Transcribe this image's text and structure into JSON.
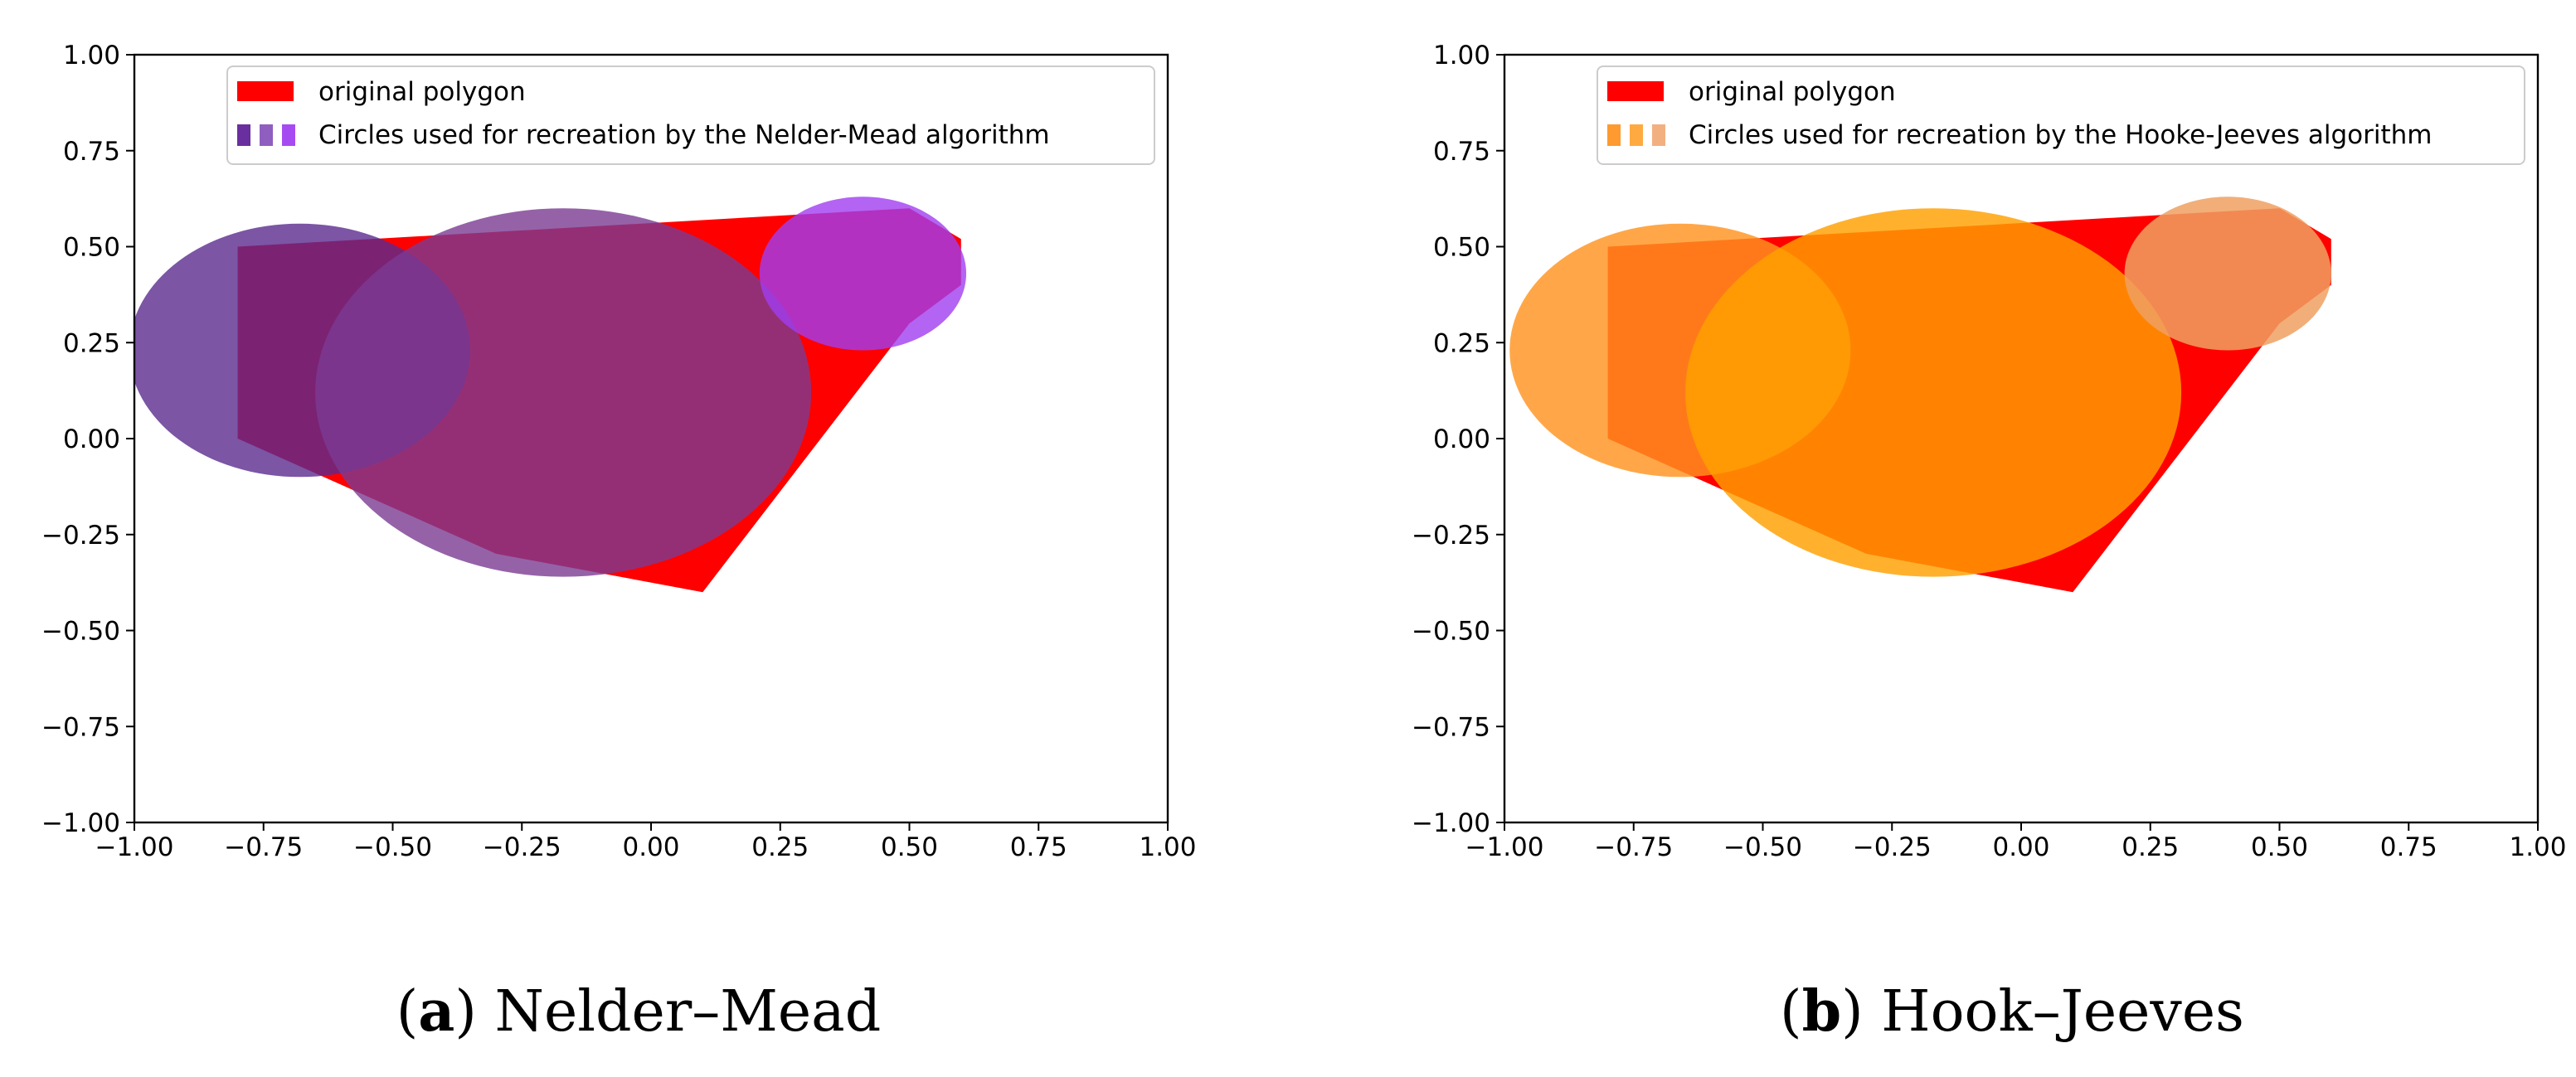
{
  "chart_data": [
    {
      "type": "shapes",
      "caption": {
        "label": "a",
        "title": "Nelder–Mead"
      },
      "xlim": [
        -1.0,
        1.0
      ],
      "ylim": [
        -1.0,
        1.0
      ],
      "xticks": [
        -1.0,
        -0.75,
        -0.5,
        -0.25,
        0.0,
        0.25,
        0.5,
        0.75,
        1.0
      ],
      "yticks": [
        -1.0,
        -0.75,
        -0.5,
        -0.25,
        0.0,
        0.25,
        0.5,
        0.75,
        1.0
      ],
      "xtick_labels": [
        "−1.00",
        "−0.75",
        "−0.50",
        "−0.25",
        "0.00",
        "0.25",
        "0.50",
        "0.75",
        "1.00"
      ],
      "ytick_labels": [
        "−1.00",
        "−0.75",
        "−0.50",
        "−0.25",
        "0.00",
        "0.25",
        "0.50",
        "0.75",
        "1.00"
      ],
      "polygon": {
        "name": "original polygon",
        "color": "#ff0000",
        "points": [
          [
            -0.8,
            0.5
          ],
          [
            0.5,
            0.6
          ],
          [
            0.6,
            0.52
          ],
          [
            0.6,
            0.4
          ],
          [
            0.5,
            0.3
          ],
          [
            0.1,
            -0.4
          ],
          [
            -0.3,
            -0.3
          ],
          [
            -0.8,
            0.0
          ]
        ]
      },
      "circles": [
        {
          "cx": -0.68,
          "cy": 0.23,
          "r": 0.33,
          "color": "#5b2a8f",
          "opacity": 0.8
        },
        {
          "cx": -0.17,
          "cy": 0.12,
          "r": 0.48,
          "color": "#7a3b92",
          "opacity": 0.8
        },
        {
          "cx": 0.41,
          "cy": 0.43,
          "r": 0.2,
          "color": "#a03df0",
          "opacity": 0.8
        }
      ],
      "legend": {
        "position": "top-center",
        "entries": [
          "original polygon",
          "Circles used for recreation by the Nelder-Mead algorithm"
        ],
        "circle_swatch_colors": [
          "#6a2f9e",
          "#8e5fbf",
          "#a64bf2"
        ]
      }
    },
    {
      "type": "shapes",
      "caption": {
        "label": "b",
        "title": "Hook–Jeeves"
      },
      "xlim": [
        -1.0,
        1.0
      ],
      "ylim": [
        -1.0,
        1.0
      ],
      "xticks": [
        -1.0,
        -0.75,
        -0.5,
        -0.25,
        0.0,
        0.25,
        0.5,
        0.75,
        1.0
      ],
      "yticks": [
        -1.0,
        -0.75,
        -0.5,
        -0.25,
        0.0,
        0.25,
        0.5,
        0.75,
        1.0
      ],
      "xtick_labels": [
        "−1.00",
        "−0.75",
        "−0.50",
        "−0.25",
        "0.00",
        "0.25",
        "0.50",
        "0.75",
        "1.00"
      ],
      "ytick_labels": [
        "−1.00",
        "−0.75",
        "−0.50",
        "−0.25",
        "0.00",
        "0.25",
        "0.50",
        "0.75",
        "1.00"
      ],
      "polygon": {
        "name": "original polygon",
        "color": "#ff0000",
        "points": [
          [
            -0.8,
            0.5
          ],
          [
            0.5,
            0.6
          ],
          [
            0.6,
            0.52
          ],
          [
            0.6,
            0.4
          ],
          [
            0.5,
            0.3
          ],
          [
            0.1,
            -0.4
          ],
          [
            -0.3,
            -0.3
          ],
          [
            -0.8,
            0.0
          ]
        ]
      },
      "circles": [
        {
          "cx": -0.66,
          "cy": 0.23,
          "r": 0.33,
          "color": "#ff9420",
          "opacity": 0.82
        },
        {
          "cx": -0.17,
          "cy": 0.12,
          "r": 0.48,
          "color": "#ffa000",
          "opacity": 0.82
        },
        {
          "cx": 0.4,
          "cy": 0.43,
          "r": 0.2,
          "color": "#f0a060",
          "opacity": 0.85
        }
      ],
      "legend": {
        "position": "top-center",
        "entries": [
          "original polygon",
          "Circles used for recreation by the Hooke-Jeeves algorithm"
        ],
        "circle_swatch_colors": [
          "#ff9a30",
          "#ffaa40",
          "#f2b080"
        ]
      }
    }
  ]
}
